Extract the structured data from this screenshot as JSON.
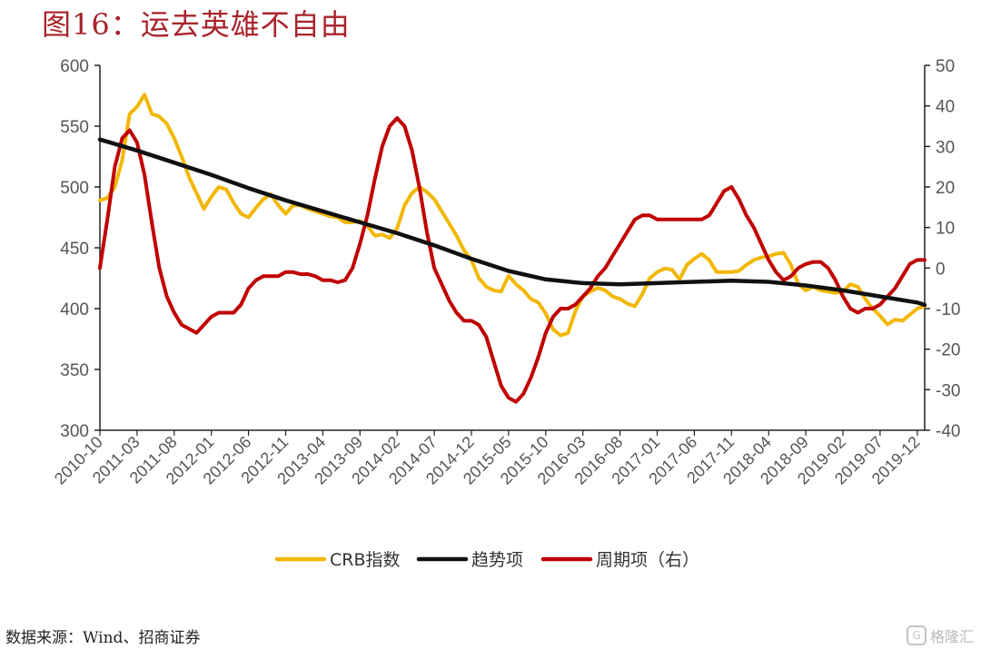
{
  "header": {
    "title": "图16：运去英雄不自由"
  },
  "footer": {
    "source": "数据来源：Wind、招商证券",
    "watermark": "格隆汇"
  },
  "colors": {
    "crb": "#f2b705",
    "trend": "#111111",
    "cycle": "#c00000",
    "title": "#a8242c"
  },
  "chart_data": {
    "type": "line",
    "title": "图16：运去英雄不自由",
    "x_tick_labels": [
      "2010-10",
      "2011-03",
      "2011-08",
      "2012-01",
      "2012-06",
      "2012-11",
      "2013-04",
      "2013-09",
      "2014-02",
      "2014-07",
      "2014-12",
      "2015-05",
      "2015-10",
      "2016-03",
      "2016-08",
      "2017-01",
      "2017-06",
      "2017-11",
      "2018-04",
      "2018-09",
      "2019-02",
      "2019-07",
      "2019-12"
    ],
    "left_axis": {
      "min": 300,
      "max": 600,
      "ticks": [
        300,
        350,
        400,
        450,
        500,
        550,
        600
      ]
    },
    "right_axis": {
      "min": -40,
      "max": 50,
      "ticks": [
        -40,
        -30,
        -20,
        -10,
        0,
        10,
        20,
        30,
        40,
        50
      ]
    },
    "grid": false,
    "legend_position": "bottom",
    "series": [
      {
        "name": "CRB指数",
        "axis": "left",
        "color": "#f2b705",
        "x": [
          "2010-10",
          "2010-11",
          "2010-12",
          "2011-01",
          "2011-02",
          "2011-03",
          "2011-04",
          "2011-05",
          "2011-06",
          "2011-07",
          "2011-08",
          "2011-09",
          "2011-10",
          "2011-11",
          "2011-12",
          "2012-01",
          "2012-02",
          "2012-03",
          "2012-04",
          "2012-05",
          "2012-06",
          "2012-07",
          "2012-08",
          "2012-09",
          "2012-10",
          "2012-11",
          "2012-12",
          "2013-01",
          "2013-02",
          "2013-03",
          "2013-04",
          "2013-05",
          "2013-06",
          "2013-07",
          "2013-08",
          "2013-09",
          "2013-10",
          "2013-11",
          "2013-12",
          "2014-01",
          "2014-02",
          "2014-03",
          "2014-04",
          "2014-05",
          "2014-06",
          "2014-07",
          "2014-08",
          "2014-09",
          "2014-10",
          "2014-11",
          "2014-12",
          "2015-01",
          "2015-02",
          "2015-03",
          "2015-04",
          "2015-05",
          "2015-06",
          "2015-07",
          "2015-08",
          "2015-09",
          "2015-10",
          "2015-11",
          "2015-12",
          "2016-01",
          "2016-02",
          "2016-03",
          "2016-04",
          "2016-05",
          "2016-06",
          "2016-07",
          "2016-08",
          "2016-09",
          "2016-10",
          "2016-11",
          "2016-12",
          "2017-01",
          "2017-02",
          "2017-03",
          "2017-04",
          "2017-05",
          "2017-06",
          "2017-07",
          "2017-08",
          "2017-09",
          "2017-10",
          "2017-11",
          "2017-12",
          "2018-01",
          "2018-02",
          "2018-03",
          "2018-04",
          "2018-05",
          "2018-06",
          "2018-07",
          "2018-08",
          "2018-09",
          "2018-10",
          "2018-11",
          "2018-12",
          "2019-01",
          "2019-02",
          "2019-03",
          "2019-04",
          "2019-05",
          "2019-06",
          "2019-07",
          "2019-08",
          "2019-09",
          "2019-10",
          "2019-11",
          "2019-12",
          "2020-01"
        ],
        "values": [
          489,
          491,
          500,
          522,
          560,
          566,
          576,
          560,
          558,
          552,
          540,
          525,
          508,
          495,
          482,
          492,
          500,
          498,
          487,
          478,
          475,
          483,
          490,
          494,
          485,
          478,
          485,
          485,
          482,
          480,
          478,
          476,
          475,
          471,
          471,
          472,
          468,
          460,
          461,
          458,
          466,
          485,
          495,
          500,
          496,
          490,
          480,
          470,
          460,
          448,
          440,
          425,
          418,
          415,
          414,
          427,
          420,
          415,
          408,
          405,
          396,
          383,
          378,
          380,
          398,
          410,
          414,
          417,
          415,
          410,
          408,
          404,
          402,
          412,
          425,
          430,
          433,
          432,
          424,
          436,
          441,
          445,
          440,
          430,
          430,
          430,
          431,
          436,
          440,
          442,
          443,
          445,
          446,
          436,
          420,
          415,
          418,
          415,
          414,
          413,
          414,
          420,
          418,
          408,
          400,
          394,
          387,
          391,
          390,
          395,
          400,
          402
        ]
      },
      {
        "name": "趋势项",
        "axis": "left",
        "color": "#111111",
        "x": [
          "2010-10",
          "2011-03",
          "2011-08",
          "2012-01",
          "2012-06",
          "2012-11",
          "2013-04",
          "2013-09",
          "2014-02",
          "2014-07",
          "2014-12",
          "2015-05",
          "2015-10",
          "2016-03",
          "2016-08",
          "2017-01",
          "2017-06",
          "2017-11",
          "2018-04",
          "2018-09",
          "2019-02",
          "2019-07",
          "2019-12",
          "2020-01"
        ],
        "values": [
          539,
          530,
          520,
          510,
          499,
          489,
          480,
          471,
          462,
          452,
          441,
          431,
          424,
          421,
          420,
          421,
          422,
          423,
          422,
          419,
          415,
          410,
          405,
          403
        ]
      },
      {
        "name": "周期项（右）",
        "axis": "right",
        "color": "#c00000",
        "x": [
          "2010-10",
          "2010-11",
          "2010-12",
          "2011-01",
          "2011-02",
          "2011-03",
          "2011-04",
          "2011-05",
          "2011-06",
          "2011-07",
          "2011-08",
          "2011-09",
          "2011-10",
          "2011-11",
          "2011-12",
          "2012-01",
          "2012-02",
          "2012-03",
          "2012-04",
          "2012-05",
          "2012-06",
          "2012-07",
          "2012-08",
          "2012-09",
          "2012-10",
          "2012-11",
          "2012-12",
          "2013-01",
          "2013-02",
          "2013-03",
          "2013-04",
          "2013-05",
          "2013-06",
          "2013-07",
          "2013-08",
          "2013-09",
          "2013-10",
          "2013-11",
          "2013-12",
          "2014-01",
          "2014-02",
          "2014-03",
          "2014-04",
          "2014-05",
          "2014-06",
          "2014-07",
          "2014-08",
          "2014-09",
          "2014-10",
          "2014-11",
          "2014-12",
          "2015-01",
          "2015-02",
          "2015-03",
          "2015-04",
          "2015-05",
          "2015-06",
          "2015-07",
          "2015-08",
          "2015-09",
          "2015-10",
          "2015-11",
          "2015-12",
          "2016-01",
          "2016-02",
          "2016-03",
          "2016-04",
          "2016-05",
          "2016-06",
          "2016-07",
          "2016-08",
          "2016-09",
          "2016-10",
          "2016-11",
          "2016-12",
          "2017-01",
          "2017-02",
          "2017-03",
          "2017-04",
          "2017-05",
          "2017-06",
          "2017-07",
          "2017-08",
          "2017-09",
          "2017-10",
          "2017-11",
          "2017-12",
          "2018-01",
          "2018-02",
          "2018-03",
          "2018-04",
          "2018-05",
          "2018-06",
          "2018-07",
          "2018-08",
          "2018-09",
          "2018-10",
          "2018-11",
          "2018-12",
          "2019-01",
          "2019-02",
          "2019-03",
          "2019-04",
          "2019-05",
          "2019-06",
          "2019-07",
          "2019-08",
          "2019-09",
          "2019-10",
          "2019-11",
          "2019-12",
          "2020-01"
        ],
        "values": [
          0,
          12,
          25,
          32,
          34,
          31,
          23,
          11,
          0,
          -7,
          -11,
          -14,
          -15,
          -16,
          -14,
          -12,
          -11,
          -11,
          -11,
          -9,
          -5,
          -3,
          -2,
          -2,
          -2,
          -1,
          -1,
          -1.5,
          -1.5,
          -2,
          -3,
          -3,
          -3.5,
          -3,
          0,
          6,
          13,
          22,
          30,
          35,
          37,
          35,
          29,
          20,
          9,
          0,
          -4,
          -8,
          -11,
          -13,
          -13,
          -14,
          -17,
          -23,
          -29,
          -32,
          -33,
          -31,
          -27,
          -22,
          -16,
          -12,
          -10,
          -10,
          -9,
          -7,
          -5,
          -2,
          0,
          3,
          6,
          9,
          12,
          13,
          13,
          12,
          12,
          12,
          12,
          12,
          12,
          12,
          13,
          16,
          19,
          20,
          17,
          13,
          10,
          6,
          2,
          -1,
          -3,
          -2,
          0,
          1,
          1.5,
          1.5,
          0,
          -3,
          -7,
          -10,
          -11,
          -10,
          -10,
          -9,
          -7,
          -5,
          -2,
          1,
          2,
          2
        ]
      }
    ]
  }
}
